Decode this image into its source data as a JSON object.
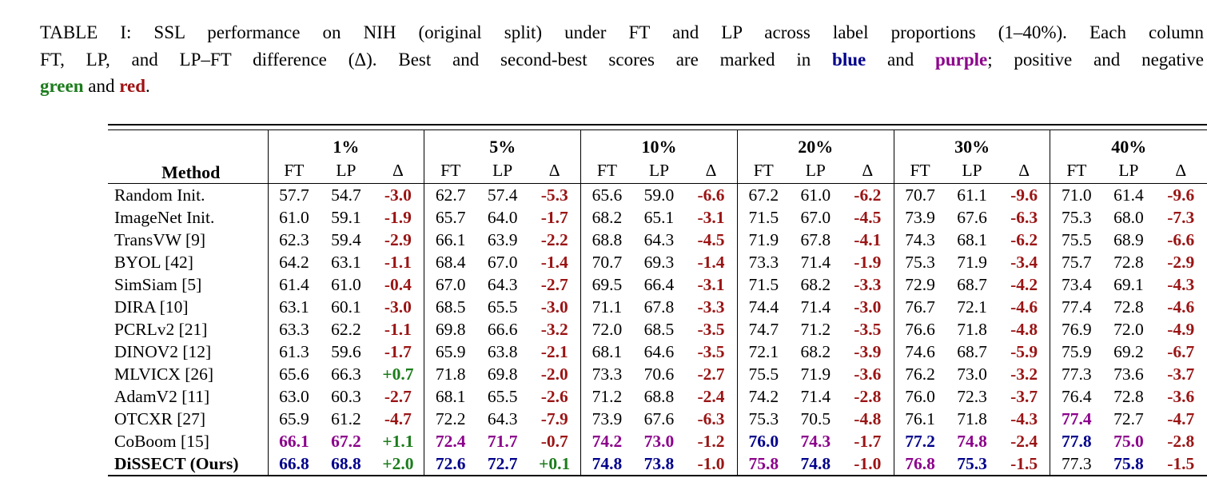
{
  "caption": {
    "line1": "TABLE I: SSL performance on NIH (original split) under FT and LP across label proportions (1–40%). Each column",
    "line2_pre": "FT, LP, and LP–FT difference (Δ). Best and second-best scores are marked in ",
    "line2_blue": "blue",
    "line2_mid": " and ",
    "line2_purple": "purple",
    "line2_post": "; positive and negative",
    "line3_green": "green",
    "line3_mid": " and ",
    "line3_red": "red",
    "line3_post": "."
  },
  "colors": {
    "best": "#00008B",
    "second_best": "#8B008B",
    "positive_delta": "#1C7C1C",
    "negative_delta": "#9A1414"
  },
  "table": {
    "method_header": "Method",
    "groups": [
      {
        "label": "1%"
      },
      {
        "label": "5%"
      },
      {
        "label": "10%"
      },
      {
        "label": "20%"
      },
      {
        "label": "30%"
      },
      {
        "label": "40%"
      }
    ],
    "sub_headers": [
      "FT",
      "LP",
      "Δ"
    ],
    "rows": [
      {
        "method": "Random Init.",
        "bold": false,
        "cells": [
          [
            "57.7",
            "k"
          ],
          [
            "54.7",
            "k"
          ],
          [
            "-3.0",
            "r"
          ],
          [
            "62.7",
            "k"
          ],
          [
            "57.4",
            "k"
          ],
          [
            "-5.3",
            "r"
          ],
          [
            "65.6",
            "k"
          ],
          [
            "59.0",
            "k"
          ],
          [
            "-6.6",
            "r"
          ],
          [
            "67.2",
            "k"
          ],
          [
            "61.0",
            "k"
          ],
          [
            "-6.2",
            "r"
          ],
          [
            "70.7",
            "k"
          ],
          [
            "61.1",
            "k"
          ],
          [
            "-9.6",
            "r"
          ],
          [
            "71.0",
            "k"
          ],
          [
            "61.4",
            "k"
          ],
          [
            "-9.6",
            "r"
          ]
        ]
      },
      {
        "method": "ImageNet Init.",
        "bold": false,
        "cells": [
          [
            "61.0",
            "k"
          ],
          [
            "59.1",
            "k"
          ],
          [
            "-1.9",
            "r"
          ],
          [
            "65.7",
            "k"
          ],
          [
            "64.0",
            "k"
          ],
          [
            "-1.7",
            "r"
          ],
          [
            "68.2",
            "k"
          ],
          [
            "65.1",
            "k"
          ],
          [
            "-3.1",
            "r"
          ],
          [
            "71.5",
            "k"
          ],
          [
            "67.0",
            "k"
          ],
          [
            "-4.5",
            "r"
          ],
          [
            "73.9",
            "k"
          ],
          [
            "67.6",
            "k"
          ],
          [
            "-6.3",
            "r"
          ],
          [
            "75.3",
            "k"
          ],
          [
            "68.0",
            "k"
          ],
          [
            "-7.3",
            "r"
          ]
        ]
      },
      {
        "method": "TransVW [9]",
        "bold": false,
        "cells": [
          [
            "62.3",
            "k"
          ],
          [
            "59.4",
            "k"
          ],
          [
            "-2.9",
            "r"
          ],
          [
            "66.1",
            "k"
          ],
          [
            "63.9",
            "k"
          ],
          [
            "-2.2",
            "r"
          ],
          [
            "68.8",
            "k"
          ],
          [
            "64.3",
            "k"
          ],
          [
            "-4.5",
            "r"
          ],
          [
            "71.9",
            "k"
          ],
          [
            "67.8",
            "k"
          ],
          [
            "-4.1",
            "r"
          ],
          [
            "74.3",
            "k"
          ],
          [
            "68.1",
            "k"
          ],
          [
            "-6.2",
            "r"
          ],
          [
            "75.5",
            "k"
          ],
          [
            "68.9",
            "k"
          ],
          [
            "-6.6",
            "r"
          ]
        ]
      },
      {
        "method": "BYOL [42]",
        "bold": false,
        "cells": [
          [
            "64.2",
            "k"
          ],
          [
            "63.1",
            "k"
          ],
          [
            "-1.1",
            "r"
          ],
          [
            "68.4",
            "k"
          ],
          [
            "67.0",
            "k"
          ],
          [
            "-1.4",
            "r"
          ],
          [
            "70.7",
            "k"
          ],
          [
            "69.3",
            "k"
          ],
          [
            "-1.4",
            "r"
          ],
          [
            "73.3",
            "k"
          ],
          [
            "71.4",
            "k"
          ],
          [
            "-1.9",
            "r"
          ],
          [
            "75.3",
            "k"
          ],
          [
            "71.9",
            "k"
          ],
          [
            "-3.4",
            "r"
          ],
          [
            "75.7",
            "k"
          ],
          [
            "72.8",
            "k"
          ],
          [
            "-2.9",
            "r"
          ]
        ]
      },
      {
        "method": "SimSiam [5]",
        "bold": false,
        "cells": [
          [
            "61.4",
            "k"
          ],
          [
            "61.0",
            "k"
          ],
          [
            "-0.4",
            "r"
          ],
          [
            "67.0",
            "k"
          ],
          [
            "64.3",
            "k"
          ],
          [
            "-2.7",
            "r"
          ],
          [
            "69.5",
            "k"
          ],
          [
            "66.4",
            "k"
          ],
          [
            "-3.1",
            "r"
          ],
          [
            "71.5",
            "k"
          ],
          [
            "68.2",
            "k"
          ],
          [
            "-3.3",
            "r"
          ],
          [
            "72.9",
            "k"
          ],
          [
            "68.7",
            "k"
          ],
          [
            "-4.2",
            "r"
          ],
          [
            "73.4",
            "k"
          ],
          [
            "69.1",
            "k"
          ],
          [
            "-4.3",
            "r"
          ]
        ]
      },
      {
        "method": "DIRA [10]",
        "bold": false,
        "cells": [
          [
            "63.1",
            "k"
          ],
          [
            "60.1",
            "k"
          ],
          [
            "-3.0",
            "r"
          ],
          [
            "68.5",
            "k"
          ],
          [
            "65.5",
            "k"
          ],
          [
            "-3.0",
            "r"
          ],
          [
            "71.1",
            "k"
          ],
          [
            "67.8",
            "k"
          ],
          [
            "-3.3",
            "r"
          ],
          [
            "74.4",
            "k"
          ],
          [
            "71.4",
            "k"
          ],
          [
            "-3.0",
            "r"
          ],
          [
            "76.7",
            "k"
          ],
          [
            "72.1",
            "k"
          ],
          [
            "-4.6",
            "r"
          ],
          [
            "77.4",
            "k"
          ],
          [
            "72.8",
            "k"
          ],
          [
            "-4.6",
            "r"
          ]
        ]
      },
      {
        "method": "PCRLv2 [21]",
        "bold": false,
        "cells": [
          [
            "63.3",
            "k"
          ],
          [
            "62.2",
            "k"
          ],
          [
            "-1.1",
            "r"
          ],
          [
            "69.8",
            "k"
          ],
          [
            "66.6",
            "k"
          ],
          [
            "-3.2",
            "r"
          ],
          [
            "72.0",
            "k"
          ],
          [
            "68.5",
            "k"
          ],
          [
            "-3.5",
            "r"
          ],
          [
            "74.7",
            "k"
          ],
          [
            "71.2",
            "k"
          ],
          [
            "-3.5",
            "r"
          ],
          [
            "76.6",
            "k"
          ],
          [
            "71.8",
            "k"
          ],
          [
            "-4.8",
            "r"
          ],
          [
            "76.9",
            "k"
          ],
          [
            "72.0",
            "k"
          ],
          [
            "-4.9",
            "r"
          ]
        ]
      },
      {
        "method": "DINOV2 [12]",
        "bold": false,
        "cells": [
          [
            "61.3",
            "k"
          ],
          [
            "59.6",
            "k"
          ],
          [
            "-1.7",
            "r"
          ],
          [
            "65.9",
            "k"
          ],
          [
            "63.8",
            "k"
          ],
          [
            "-2.1",
            "r"
          ],
          [
            "68.1",
            "k"
          ],
          [
            "64.6",
            "k"
          ],
          [
            "-3.5",
            "r"
          ],
          [
            "72.1",
            "k"
          ],
          [
            "68.2",
            "k"
          ],
          [
            "-3.9",
            "r"
          ],
          [
            "74.6",
            "k"
          ],
          [
            "68.7",
            "k"
          ],
          [
            "-5.9",
            "r"
          ],
          [
            "75.9",
            "k"
          ],
          [
            "69.2",
            "k"
          ],
          [
            "-6.7",
            "r"
          ]
        ]
      },
      {
        "method": "MLVICX [26]",
        "bold": false,
        "cells": [
          [
            "65.6",
            "k"
          ],
          [
            "66.3",
            "k"
          ],
          [
            "+0.7",
            "g"
          ],
          [
            "71.8",
            "k"
          ],
          [
            "69.8",
            "k"
          ],
          [
            "-2.0",
            "r"
          ],
          [
            "73.3",
            "k"
          ],
          [
            "70.6",
            "k"
          ],
          [
            "-2.7",
            "r"
          ],
          [
            "75.5",
            "k"
          ],
          [
            "71.9",
            "k"
          ],
          [
            "-3.6",
            "r"
          ],
          [
            "76.2",
            "k"
          ],
          [
            "73.0",
            "k"
          ],
          [
            "-3.2",
            "r"
          ],
          [
            "77.3",
            "k"
          ],
          [
            "73.6",
            "k"
          ],
          [
            "-3.7",
            "r"
          ]
        ]
      },
      {
        "method": "AdamV2 [11]",
        "bold": false,
        "cells": [
          [
            "63.0",
            "k"
          ],
          [
            "60.3",
            "k"
          ],
          [
            "-2.7",
            "r"
          ],
          [
            "68.1",
            "k"
          ],
          [
            "65.5",
            "k"
          ],
          [
            "-2.6",
            "r"
          ],
          [
            "71.2",
            "k"
          ],
          [
            "68.8",
            "k"
          ],
          [
            "-2.4",
            "r"
          ],
          [
            "74.2",
            "k"
          ],
          [
            "71.4",
            "k"
          ],
          [
            "-2.8",
            "r"
          ],
          [
            "76.0",
            "k"
          ],
          [
            "72.3",
            "k"
          ],
          [
            "-3.7",
            "r"
          ],
          [
            "76.4",
            "k"
          ],
          [
            "72.8",
            "k"
          ],
          [
            "-3.6",
            "r"
          ]
        ]
      },
      {
        "method": "OTCXR [27]",
        "bold": false,
        "cells": [
          [
            "65.9",
            "k"
          ],
          [
            "61.2",
            "k"
          ],
          [
            "-4.7",
            "r"
          ],
          [
            "72.2",
            "k"
          ],
          [
            "64.3",
            "k"
          ],
          [
            "-7.9",
            "r"
          ],
          [
            "73.9",
            "k"
          ],
          [
            "67.6",
            "k"
          ],
          [
            "-6.3",
            "r"
          ],
          [
            "75.3",
            "k"
          ],
          [
            "70.5",
            "k"
          ],
          [
            "-4.8",
            "r"
          ],
          [
            "76.1",
            "k"
          ],
          [
            "71.8",
            "k"
          ],
          [
            "-4.3",
            "r"
          ],
          [
            "77.4",
            "p"
          ],
          [
            "72.7",
            "k"
          ],
          [
            "-4.7",
            "r"
          ]
        ]
      },
      {
        "method": "CoBoom [15]",
        "bold": false,
        "cells": [
          [
            "66.1",
            "p"
          ],
          [
            "67.2",
            "p"
          ],
          [
            "+1.1",
            "g"
          ],
          [
            "72.4",
            "p"
          ],
          [
            "71.7",
            "p"
          ],
          [
            "-0.7",
            "r"
          ],
          [
            "74.2",
            "p"
          ],
          [
            "73.0",
            "p"
          ],
          [
            "-1.2",
            "r"
          ],
          [
            "76.0",
            "b"
          ],
          [
            "74.3",
            "p"
          ],
          [
            "-1.7",
            "r"
          ],
          [
            "77.2",
            "b"
          ],
          [
            "74.8",
            "p"
          ],
          [
            "-2.4",
            "r"
          ],
          [
            "77.8",
            "b"
          ],
          [
            "75.0",
            "p"
          ],
          [
            "-2.8",
            "r"
          ]
        ]
      },
      {
        "method": "DiSSECT (Ours)",
        "bold": true,
        "cells": [
          [
            "66.8",
            "b"
          ],
          [
            "68.8",
            "b"
          ],
          [
            "+2.0",
            "g"
          ],
          [
            "72.6",
            "b"
          ],
          [
            "72.7",
            "b"
          ],
          [
            "+0.1",
            "g"
          ],
          [
            "74.8",
            "b"
          ],
          [
            "73.8",
            "b"
          ],
          [
            "-1.0",
            "r"
          ],
          [
            "75.8",
            "p"
          ],
          [
            "74.8",
            "b"
          ],
          [
            "-1.0",
            "r"
          ],
          [
            "76.8",
            "p"
          ],
          [
            "75.3",
            "b"
          ],
          [
            "-1.5",
            "r"
          ],
          [
            "77.3",
            "k"
          ],
          [
            "75.8",
            "b"
          ],
          [
            "-1.5",
            "r"
          ]
        ]
      }
    ]
  }
}
